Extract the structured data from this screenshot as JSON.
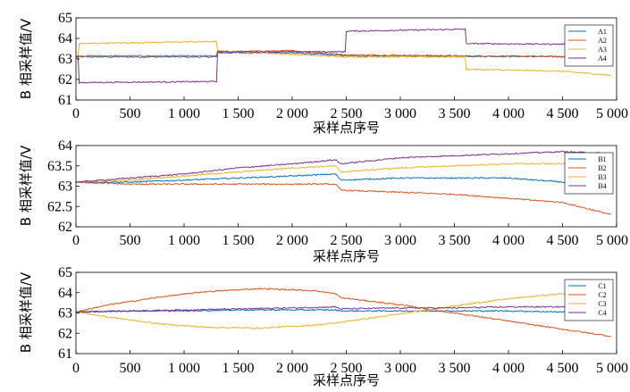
{
  "chart_data": [
    {
      "type": "line",
      "xlabel": "采样点序号",
      "ylabel": "B 相采样值/V",
      "xlim": [
        0,
        5000
      ],
      "ylim": [
        61,
        65
      ],
      "yticks": [
        61,
        62,
        63,
        64,
        65
      ],
      "xtick_values": [
        0,
        500,
        1000,
        1500,
        2000,
        2500,
        3000,
        3500,
        4000,
        4500,
        5000
      ],
      "xtick_labels": [
        "0",
        "500",
        "1 000",
        "1 500",
        "2 000",
        "2 500",
        "3 000",
        "3 500",
        "4 000",
        "4 500",
        "5 000"
      ],
      "legend_position": "right",
      "series": [
        {
          "name": "A1",
          "color": "#0072BD",
          "x": [
            0,
            25,
            30,
            1300,
            1305,
            2000,
            2500,
            4950
          ],
          "y": [
            63.1,
            63.1,
            63.1,
            63.1,
            63.3,
            63.3,
            63.15,
            63.1
          ]
        },
        {
          "name": "A2",
          "color": "#D95319",
          "x": [
            0,
            30,
            1300,
            1305,
            2000,
            2500,
            3600,
            4950
          ],
          "y": [
            63.15,
            63.15,
            63.15,
            63.35,
            63.4,
            63.2,
            63.15,
            63.1
          ]
        },
        {
          "name": "A3",
          "color": "#EDB120",
          "x": [
            0,
            25,
            30,
            1300,
            1305,
            2500,
            3600,
            3605,
            4500,
            4950
          ],
          "y": [
            63.1,
            63.1,
            63.75,
            63.85,
            63.4,
            63.1,
            63.1,
            62.5,
            62.4,
            62.2
          ]
        },
        {
          "name": "A4",
          "color": "#7E2F8E",
          "x": [
            0,
            25,
            30,
            1300,
            1305,
            2495,
            2500,
            3600,
            3605,
            4950
          ],
          "y": [
            63.1,
            63.1,
            61.85,
            61.9,
            63.35,
            63.35,
            64.35,
            64.45,
            63.75,
            63.7
          ]
        }
      ]
    },
    {
      "type": "line",
      "xlabel": "采样点序号",
      "ylabel": "B 相采样值/V",
      "xlim": [
        0,
        5000
      ],
      "ylim": [
        62,
        64
      ],
      "yticks": [
        62,
        62.5,
        63,
        63.5,
        64
      ],
      "ytick_labels": [
        "62",
        "62.5",
        "63",
        "63.5",
        "64"
      ],
      "xtick_values": [
        0,
        500,
        1000,
        1500,
        2000,
        2500,
        3000,
        3500,
        4000,
        4500,
        5000
      ],
      "xtick_labels": [
        "0",
        "500",
        "1 000",
        "1 500",
        "2 000",
        "2 500",
        "3 000",
        "3 500",
        "4 000",
        "4 500",
        "5 000"
      ],
      "legend_position": "right",
      "series": [
        {
          "name": "B1",
          "color": "#0072BD",
          "x": [
            0,
            500,
            1000,
            1500,
            2000,
            2400,
            2450,
            3000,
            3500,
            4000,
            4500,
            4950
          ],
          "y": [
            63.1,
            63.1,
            63.15,
            63.2,
            63.25,
            63.3,
            63.15,
            63.2,
            63.2,
            63.2,
            63.1,
            62.9
          ]
        },
        {
          "name": "B2",
          "color": "#D95319",
          "x": [
            0,
            500,
            1000,
            1500,
            2000,
            2400,
            2450,
            3000,
            3500,
            4000,
            4500,
            4950
          ],
          "y": [
            63.1,
            63.05,
            63.05,
            63.05,
            63.05,
            63.05,
            62.9,
            62.85,
            62.8,
            62.7,
            62.6,
            62.3
          ]
        },
        {
          "name": "B3",
          "color": "#EDB120",
          "x": [
            0,
            500,
            1000,
            1500,
            2000,
            2400,
            2450,
            3000,
            3500,
            4000,
            4500,
            4950
          ],
          "y": [
            63.1,
            63.15,
            63.25,
            63.35,
            63.45,
            63.5,
            63.35,
            63.45,
            63.5,
            63.55,
            63.55,
            63.5
          ]
        },
        {
          "name": "B4",
          "color": "#7E2F8E",
          "x": [
            0,
            500,
            1000,
            1500,
            2000,
            2400,
            2450,
            3000,
            3500,
            4000,
            4500,
            4950
          ],
          "y": [
            63.1,
            63.2,
            63.3,
            63.45,
            63.55,
            63.65,
            63.55,
            63.7,
            63.75,
            63.8,
            63.85,
            63.8
          ]
        }
      ]
    },
    {
      "type": "line",
      "xlabel": "采样点序号",
      "ylabel": "B 相采样值/V",
      "xlim": [
        0,
        5000
      ],
      "ylim": [
        61,
        65
      ],
      "yticks": [
        61,
        62,
        63,
        64,
        65
      ],
      "xtick_values": [
        0,
        500,
        1000,
        1500,
        2000,
        2500,
        3000,
        3500,
        4000,
        4500,
        5000
      ],
      "xtick_labels": [
        "0",
        "500",
        "1 000",
        "1 500",
        "2 000",
        "2 500",
        "3 000",
        "3 500",
        "4 000",
        "4 500",
        "5 000"
      ],
      "legend_position": "right",
      "series": [
        {
          "name": "C1",
          "color": "#0072BD",
          "x": [
            0,
            500,
            1000,
            1500,
            2000,
            2400,
            2450,
            3000,
            3500,
            4000,
            4500,
            4950
          ],
          "y": [
            63.05,
            63.1,
            63.1,
            63.15,
            63.15,
            63.15,
            63.1,
            63.1,
            63.1,
            63.1,
            63.05,
            63.0
          ]
        },
        {
          "name": "C2",
          "color": "#D95319",
          "x": [
            0,
            300,
            800,
            1200,
            1700,
            2200,
            2400,
            2450,
            3000,
            3500,
            4000,
            4500,
            4950
          ],
          "y": [
            63.05,
            63.4,
            63.8,
            64.05,
            64.2,
            64.1,
            63.95,
            63.75,
            63.4,
            63.0,
            62.6,
            62.2,
            61.85
          ]
        },
        {
          "name": "C3",
          "color": "#EDB120",
          "x": [
            0,
            300,
            800,
            1200,
            1700,
            2200,
            2400,
            2450,
            3000,
            3500,
            4000,
            4500,
            4950
          ],
          "y": [
            63.05,
            62.8,
            62.45,
            62.3,
            62.25,
            62.4,
            62.5,
            62.55,
            62.95,
            63.35,
            63.7,
            63.95,
            64.0
          ]
        },
        {
          "name": "C4",
          "color": "#7E2F8E",
          "x": [
            0,
            500,
            1000,
            1500,
            2000,
            2400,
            2450,
            3000,
            3500,
            4000,
            4500,
            4950
          ],
          "y": [
            63.05,
            63.1,
            63.15,
            63.2,
            63.25,
            63.3,
            63.2,
            63.25,
            63.25,
            63.3,
            63.3,
            63.3
          ]
        }
      ]
    }
  ]
}
